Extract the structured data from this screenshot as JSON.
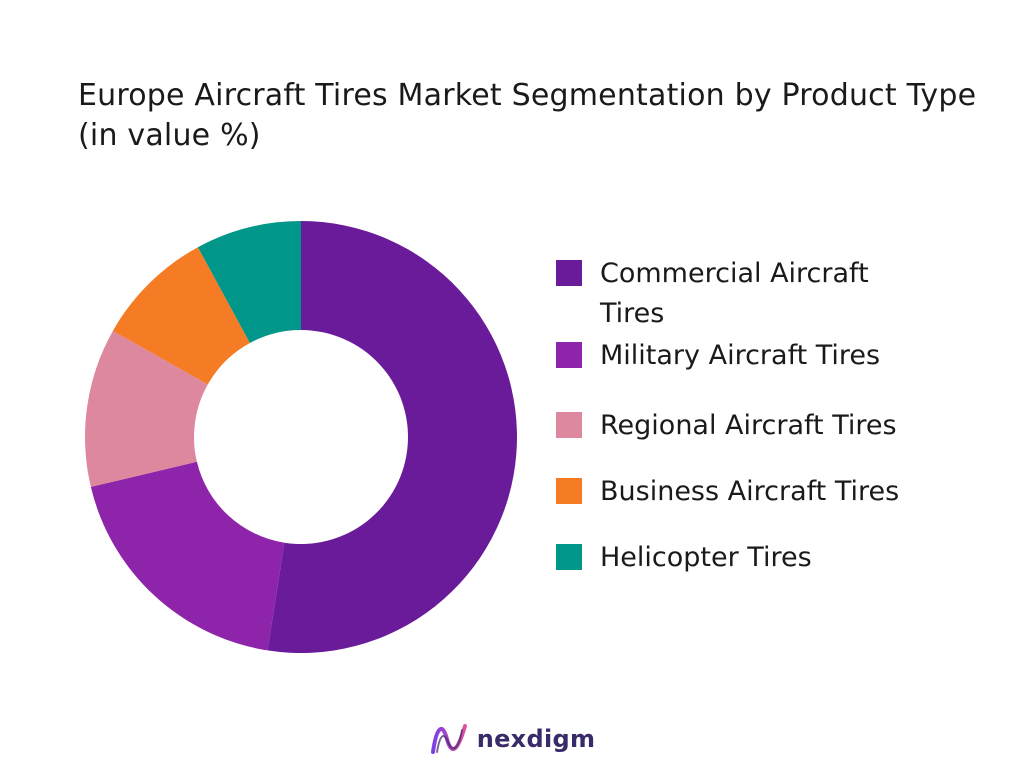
{
  "chart_data": {
    "type": "pie",
    "title": "Europe Aircraft Tires Market Segmentation by Product Type (in value %)",
    "donut": true,
    "legend_position": "right",
    "categories": [
      "Commercial Aircraft Tires",
      "Military Aircraft Tires",
      "Regional Aircraft Tires",
      "Business Aircraft Tires",
      "Helicopter Tires"
    ],
    "values": [
      53,
      19,
      12,
      9,
      8
    ],
    "colors": [
      "#6a1b9a",
      "#8e24aa",
      "#de889f",
      "#f57c24",
      "#00968a"
    ]
  },
  "brand": {
    "name": "nexdigm",
    "logo_icon": "wave-logo-icon",
    "color": "#3a2a6a"
  }
}
